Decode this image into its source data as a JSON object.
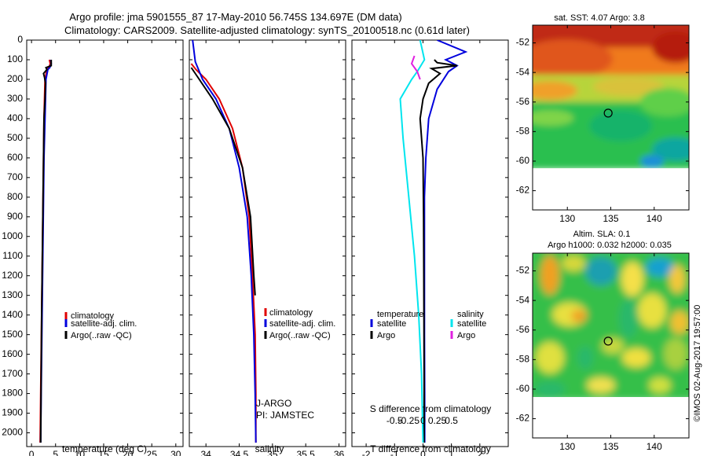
{
  "header": {
    "line1": "Argo profile: jma 5901555_87 17-May-2010 56.745S 134.697E (DM data)",
    "line2": "Climatology: CARS2009. Satellite-adjusted climatology: synTS_20100518.nc (0.61d later)"
  },
  "colors": {
    "climatology": "#e00000",
    "satellite": "#0000dd",
    "argo": "#000000",
    "salinity_sat": "#00e5ee",
    "salinity_argo": "#e020e0"
  },
  "chart_data": [
    {
      "id": "temperature",
      "type": "line",
      "xlabel": "temperature (deg C)",
      "ylim": [
        2070,
        0
      ],
      "xlim": [
        -1,
        31.5
      ],
      "xticks": [
        "0",
        "5",
        "10",
        "15",
        "20",
        "25",
        "30"
      ],
      "xtick_values": [
        0,
        5,
        10,
        15,
        20,
        25,
        30
      ],
      "yticks": [
        "0",
        "100",
        "200",
        "300",
        "400",
        "500",
        "600",
        "700",
        "800",
        "900",
        "1000",
        "1100",
        "1200",
        "1300",
        "1400",
        "1500",
        "1600",
        "1700",
        "1800",
        "1900",
        "2000"
      ],
      "ytick_values": [
        0,
        100,
        200,
        300,
        400,
        500,
        600,
        700,
        800,
        900,
        1000,
        1100,
        1200,
        1300,
        1400,
        1500,
        1600,
        1700,
        1800,
        1900,
        2000
      ],
      "legend": [
        "climatology",
        "satellite-adj. clim.",
        "Argo(..raw -QC)"
      ],
      "series": [
        {
          "name": "climatology",
          "color": "#e00000",
          "x": [
            3.7,
            3.9,
            3.6,
            3.2,
            2.8,
            2.6,
            2.5,
            2.4,
            2.3,
            2.2,
            2.1,
            2.0,
            1.9,
            1.8
          ],
          "y": [
            100,
            120,
            140,
            150,
            200,
            400,
            600,
            800,
            1000,
            1200,
            1400,
            1600,
            1800,
            2050
          ]
        },
        {
          "name": "satellite-adj. clim.",
          "color": "#0000dd",
          "x": [
            4.0,
            4.1,
            3.8,
            3.4,
            3.0,
            2.8,
            2.6,
            2.5,
            2.4,
            2.3,
            2.2,
            2.1,
            2.0,
            1.9
          ],
          "y": [
            100,
            120,
            140,
            150,
            200,
            400,
            600,
            800,
            1000,
            1200,
            1400,
            1600,
            1800,
            2050
          ]
        },
        {
          "name": "Argo(..raw -QC)",
          "color": "#000000",
          "x": [
            4.1,
            4.1,
            3.0,
            3.2,
            2.5,
            2.7,
            2.9,
            2.8,
            2.6,
            2.5,
            2.4,
            2.3,
            2.2,
            2.1,
            2.0,
            1.9
          ],
          "y": [
            100,
            130,
            140,
            150,
            170,
            190,
            220,
            300,
            400,
            600,
            800,
            1000,
            1200,
            1400,
            1700,
            2050
          ]
        }
      ]
    },
    {
      "id": "salinity",
      "type": "line",
      "xlabel": "salinity",
      "ylim": [
        2070,
        0
      ],
      "xlim": [
        33.75,
        36.1
      ],
      "xticks": [
        "34",
        "34.5",
        "35",
        "35.5",
        "36"
      ],
      "xtick_values": [
        34,
        34.5,
        35,
        35.5,
        36
      ],
      "legend": [
        "climatology",
        "satellite-adj. clim.",
        "Argo(..raw -QC)"
      ],
      "annotations": [
        "J-ARGO",
        "PI: JAMSTEC"
      ],
      "series": [
        {
          "name": "climatology",
          "color": "#e00000",
          "x": [
            33.78,
            33.85,
            34.0,
            34.2,
            34.4,
            34.55,
            34.65,
            34.7,
            34.74,
            34.75,
            34.75
          ],
          "y": [
            120,
            150,
            200,
            300,
            450,
            650,
            900,
            1200,
            1500,
            1800,
            2050
          ]
        },
        {
          "name": "satellite-adj. clim.",
          "color": "#0000dd",
          "x": [
            33.8,
            33.84,
            33.95,
            34.15,
            34.35,
            34.5,
            34.62,
            34.68,
            34.72,
            34.74,
            34.75
          ],
          "y": [
            0,
            110,
            200,
            300,
            450,
            650,
            900,
            1200,
            1500,
            1800,
            2050
          ]
        },
        {
          "name": "Argo(..raw -QC)",
          "color": "#000000",
          "x": [
            33.78,
            33.9,
            34.1,
            34.35,
            34.55,
            34.67,
            34.72,
            34.74
          ],
          "y": [
            140,
            200,
            300,
            450,
            650,
            900,
            1200,
            1300
          ]
        }
      ]
    },
    {
      "id": "differences",
      "type": "line",
      "xlabel": "T difference from climatology",
      "xlabel2": "S difference from climatology",
      "ylim": [
        2070,
        0
      ],
      "xlim": [
        -2.5,
        3
      ],
      "xticks": [
        "-2",
        "-1",
        "0",
        "1",
        "2"
      ],
      "xtick_values": [
        -2,
        -1,
        0,
        1,
        2
      ],
      "xticks_top": [
        "-0.5",
        "-0.25",
        "0",
        "0.25",
        "0.5"
      ],
      "xtick_top_values": [
        -1,
        -0.5,
        0,
        0.5,
        1
      ],
      "legend_titles": [
        "temperature",
        "salinity"
      ],
      "legend": [
        "satellite",
        "Argo",
        "satellite",
        "Argo"
      ],
      "series": [
        {
          "name": "temperature satellite",
          "color": "#0000dd",
          "x": [
            0.5,
            1.5,
            0.8,
            1.2,
            0.9,
            0.5,
            0.2,
            0.1,
            0.05,
            0.05,
            0.05,
            0.05,
            0.06,
            0.06
          ],
          "y": [
            0,
            60,
            100,
            130,
            160,
            250,
            400,
            600,
            800,
            1000,
            1200,
            1500,
            1800,
            2050
          ]
        },
        {
          "name": "temperature Argo",
          "color": "#000000",
          "x": [
            0.4,
            0.5,
            1.2,
            0.3,
            0.6,
            0.2,
            0.0,
            -0.1,
            0.0,
            0.02,
            0.03,
            0.04,
            0.04
          ],
          "y": [
            100,
            115,
            130,
            145,
            170,
            220,
            300,
            400,
            600,
            900,
            1200,
            1700,
            2050
          ]
        },
        {
          "name": "salinity satellite",
          "color": "#00e5ee",
          "x": [
            -0.1,
            0.05,
            -0.2,
            -0.4,
            -0.8,
            -0.7,
            -0.5,
            -0.3,
            -0.15,
            -0.05,
            0.0
          ],
          "y": [
            0,
            100,
            160,
            200,
            300,
            500,
            800,
            1100,
            1400,
            1700,
            2050
          ]
        },
        {
          "name": "salinity Argo",
          "color": "#e020e0",
          "x": [
            -0.3,
            -0.4,
            -0.2,
            -0.1
          ],
          "y": [
            80,
            120,
            160,
            200
          ]
        }
      ]
    },
    {
      "id": "sst-map",
      "type": "heatmap",
      "title": "sat. SST: 4.07 Argo: 3.8",
      "xlim": [
        126,
        144
      ],
      "ylim": [
        -63.3,
        -50.8
      ],
      "xticks": [
        "130",
        "135",
        "140"
      ],
      "xtick_values": [
        130,
        135,
        140
      ],
      "yticks": [
        "-52",
        "-54",
        "-56",
        "-58",
        "-60",
        "-62"
      ],
      "ytick_values": [
        -52,
        -54,
        -56,
        -58,
        -60,
        -62
      ],
      "marker": {
        "lon": 134.7,
        "lat": -56.75
      }
    },
    {
      "id": "sla-map",
      "type": "heatmap",
      "title": "Altim. SLA: 0.1",
      "subtitle": "Argo h1000: 0.032 h2000: 0.035",
      "xlim": [
        126,
        144
      ],
      "ylim": [
        -63.3,
        -50.8
      ],
      "xticks": [
        "130",
        "135",
        "140"
      ],
      "xtick_values": [
        130,
        135,
        140
      ],
      "yticks": [
        "-52",
        "-54",
        "-56",
        "-58",
        "-60",
        "-62"
      ],
      "ytick_values": [
        -52,
        -54,
        -56,
        -58,
        -60,
        -62
      ],
      "marker": {
        "lon": 134.7,
        "lat": -56.75
      }
    }
  ],
  "copyright": "©IMOS 02-Aug-2017 19:57:00"
}
